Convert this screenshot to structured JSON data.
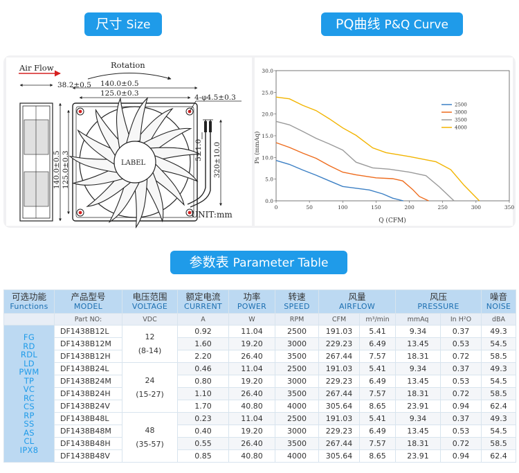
{
  "headers": {
    "size": {
      "cn": "尺寸",
      "en": "Size"
    },
    "curve": {
      "cn": "PQ曲线",
      "en": "P&Q Curve"
    },
    "table": {
      "cn": "参数表",
      "en": "Parameter Table"
    }
  },
  "drawing": {
    "air_flow": "Air Flow",
    "rotation": "Rotation",
    "depth": "38.2±0.5",
    "width_outer": "140.0±0.5",
    "width_hole": "125.0±0.3",
    "height_outer": "140.0±0.5",
    "height_hole": "125.0±0.3",
    "hole": "4-φ4.5±0.3",
    "wire_gap": "5±1.0",
    "lead": "320±10.0",
    "label": "LABEL",
    "unit": "UNIT:mm"
  },
  "chart_data": {
    "type": "line",
    "xlabel": "Q (CFM)",
    "ylabel": "Ps (mmAq)",
    "xlim": [
      0,
      350
    ],
    "ylim": [
      0,
      30
    ],
    "x_ticks": [
      "0",
      "50",
      "100",
      "150",
      "200",
      "250",
      "300",
      "350"
    ],
    "y_ticks": [
      "0.0",
      "5.0",
      "10.0",
      "15.0",
      "20.0",
      "25.0",
      "30.0"
    ],
    "grid": false,
    "legend_position": "right",
    "series": [
      {
        "name": "2500",
        "color": "#3b7fc4",
        "points": [
          [
            0,
            9.3
          ],
          [
            20,
            8.4
          ],
          [
            40,
            7.1
          ],
          [
            60,
            5.9
          ],
          [
            80,
            4.6
          ],
          [
            100,
            3.3
          ],
          [
            120,
            2.9
          ],
          [
            140,
            2.5
          ],
          [
            160,
            1.6
          ],
          [
            175,
            0.6
          ],
          [
            191,
            0
          ]
        ]
      },
      {
        "name": "3000",
        "color": "#ee6b1c",
        "points": [
          [
            0,
            13.4
          ],
          [
            20,
            12.3
          ],
          [
            40,
            11.0
          ],
          [
            60,
            9.8
          ],
          [
            80,
            8.1
          ],
          [
            100,
            6.6
          ],
          [
            120,
            6.0
          ],
          [
            150,
            5.3
          ],
          [
            175,
            5.1
          ],
          [
            190,
            4.6
          ],
          [
            205,
            2.6
          ],
          [
            215,
            1.0
          ],
          [
            229,
            0
          ]
        ]
      },
      {
        "name": "3500",
        "color": "#9a9a9a",
        "points": [
          [
            0,
            18.3
          ],
          [
            20,
            17.5
          ],
          [
            40,
            16.0
          ],
          [
            60,
            14.4
          ],
          [
            80,
            13.1
          ],
          [
            100,
            11.7
          ],
          [
            120,
            8.9
          ],
          [
            145,
            7.6
          ],
          [
            170,
            7.3
          ],
          [
            200,
            6.6
          ],
          [
            225,
            5.8
          ],
          [
            245,
            3.2
          ],
          [
            267,
            0
          ]
        ]
      },
      {
        "name": "4000",
        "color": "#f2b400",
        "points": [
          [
            0,
            23.9
          ],
          [
            20,
            23.5
          ],
          [
            40,
            22.0
          ],
          [
            60,
            20.8
          ],
          [
            80,
            18.9
          ],
          [
            100,
            16.8
          ],
          [
            120,
            15.1
          ],
          [
            145,
            12.2
          ],
          [
            165,
            11.1
          ],
          [
            200,
            10.2
          ],
          [
            240,
            9.0
          ],
          [
            262,
            7.2
          ],
          [
            282,
            3.6
          ],
          [
            305,
            0
          ]
        ]
      }
    ]
  },
  "table": {
    "columns": [
      {
        "cn": "可选功能",
        "en": "Functions"
      },
      {
        "cn": "产品型号",
        "en": "MODEL"
      },
      {
        "cn": "电压范围",
        "en": "VOLTAGE"
      },
      {
        "cn": "额定电流",
        "en": "CURRENT"
      },
      {
        "cn": "功率",
        "en": "POWER"
      },
      {
        "cn": "转速",
        "en": "SPEED"
      },
      {
        "cn": "风量",
        "en": "AIRFLOW"
      },
      {
        "cn": "风压",
        "en": "PRESSURE"
      },
      {
        "cn": "噪音",
        "en": "NOISE"
      }
    ],
    "units": [
      "Part NO:",
      "VDC",
      "A",
      "W",
      "RPM",
      "CFM",
      "m³/min",
      "mmAq",
      "In H²O",
      "dBA"
    ],
    "functions": [
      "FG",
      "RD",
      "RDL",
      "LD",
      "PWM",
      "TP",
      "VC",
      "RC",
      "CS",
      "RP",
      "SS",
      "AS",
      "CL",
      "IPX8"
    ],
    "voltage_groups": [
      {
        "nominal": "12",
        "range": "(8-14)"
      },
      {
        "nominal": "24",
        "range": "(15-27)"
      },
      {
        "nominal": "48",
        "range": "(35-57)"
      }
    ],
    "rows": [
      {
        "model": "DF1438B12L",
        "current": "0.92",
        "power": "11.04",
        "speed": "2500",
        "cfm": "191.03",
        "m3": "5.41",
        "mmaq": "9.34",
        "inh2o": "0.37",
        "noise": "49.3"
      },
      {
        "model": "DF1438B12M",
        "current": "1.60",
        "power": "19.20",
        "speed": "3000",
        "cfm": "229.23",
        "m3": "6.49",
        "mmaq": "13.45",
        "inh2o": "0.53",
        "noise": "54.5"
      },
      {
        "model": "DF1438B12H",
        "current": "2.20",
        "power": "26.40",
        "speed": "3500",
        "cfm": "267.44",
        "m3": "7.57",
        "mmaq": "18.31",
        "inh2o": "0.72",
        "noise": "58.5"
      },
      {
        "model": "DF1438B24L",
        "current": "0.46",
        "power": "11.04",
        "speed": "2500",
        "cfm": "191.03",
        "m3": "5.41",
        "mmaq": "9.34",
        "inh2o": "0.37",
        "noise": "49.3"
      },
      {
        "model": "DF1438B24M",
        "current": "0.80",
        "power": "19.20",
        "speed": "3000",
        "cfm": "229.23",
        "m3": "6.49",
        "mmaq": "13.45",
        "inh2o": "0.53",
        "noise": "54.5"
      },
      {
        "model": "DF1438B24H",
        "current": "1.10",
        "power": "26.40",
        "speed": "3500",
        "cfm": "267.44",
        "m3": "7.57",
        "mmaq": "18.31",
        "inh2o": "0.72",
        "noise": "58.5"
      },
      {
        "model": "DF1438B24V",
        "current": "1.70",
        "power": "40.80",
        "speed": "4000",
        "cfm": "305.64",
        "m3": "8.65",
        "mmaq": "23.91",
        "inh2o": "0.94",
        "noise": "62.4"
      },
      {
        "model": "DF1438B48L",
        "current": "0.23",
        "power": "11.04",
        "speed": "2500",
        "cfm": "191.03",
        "m3": "5.41",
        "mmaq": "9.34",
        "inh2o": "0.37",
        "noise": "49.3"
      },
      {
        "model": "DF1438B48M",
        "current": "0.40",
        "power": "19.20",
        "speed": "3000",
        "cfm": "229.23",
        "m3": "6.49",
        "mmaq": "13.45",
        "inh2o": "0.53",
        "noise": "54.5"
      },
      {
        "model": "DF1438B48H",
        "current": "0.55",
        "power": "26.40",
        "speed": "3500",
        "cfm": "267.44",
        "m3": "7.57",
        "mmaq": "18.31",
        "inh2o": "0.72",
        "noise": "58.5"
      },
      {
        "model": "DF1438B48V",
        "current": "0.85",
        "power": "40.80",
        "speed": "4000",
        "cfm": "305.64",
        "m3": "8.65",
        "mmaq": "23.91",
        "inh2o": "0.94",
        "noise": "62.4"
      }
    ]
  }
}
